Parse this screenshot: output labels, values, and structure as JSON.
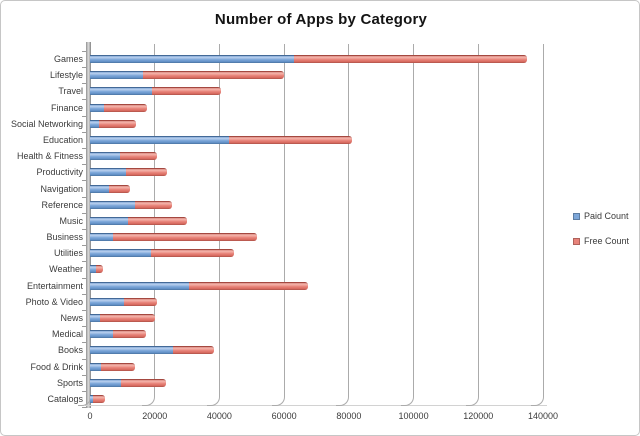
{
  "title": "Number of Apps by Category",
  "chart_data": {
    "type": "bar",
    "orientation": "horizontal",
    "stacked": true,
    "title": "Number of Apps by Category",
    "categories": [
      "Games",
      "Lifestyle",
      "Travel",
      "Finance",
      "Social Networking",
      "Education",
      "Health & Fitness",
      "Productivity",
      "Navigation",
      "Reference",
      "Music",
      "Business",
      "Utilities",
      "Weather",
      "Entertainment",
      "Photo & Video",
      "News",
      "Medical",
      "Books",
      "Food & Drink",
      "Sports",
      "Catalogs"
    ],
    "series": [
      {
        "name": "Paid Count",
        "color": "#7da7d9",
        "values": [
          63000,
          16300,
          19200,
          4300,
          2700,
          43000,
          9400,
          11200,
          6000,
          13800,
          11700,
          7000,
          18900,
          1900,
          30500,
          10500,
          3100,
          7000,
          25700,
          3500,
          9600,
          800
        ]
      },
      {
        "name": "Free Count",
        "color": "#e8837a",
        "values": [
          72000,
          43700,
          21300,
          13300,
          11500,
          38000,
          11300,
          12500,
          6400,
          11400,
          18300,
          44500,
          25500,
          2100,
          37000,
          10200,
          17000,
          10300,
          12700,
          10300,
          13900,
          3800
        ]
      }
    ],
    "xlim": [
      0,
      140000
    ],
    "x_ticks": [
      0,
      20000,
      40000,
      60000,
      80000,
      100000,
      120000,
      140000
    ],
    "x_tick_labels": [
      "0",
      "20000",
      "40000",
      "60000",
      "80000",
      "100000",
      "120000",
      "140000"
    ],
    "grid": true,
    "legend_position": "right"
  },
  "colors": {
    "paid": "#7da7d9",
    "free": "#e8837a",
    "gridline": "#ababab",
    "axis_text": "#3b3b3b",
    "title_text": "#141414",
    "frame_border": "#c6c6c6"
  }
}
